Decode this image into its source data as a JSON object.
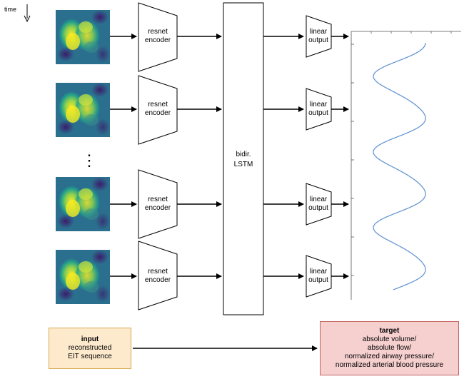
{
  "time_label": "time",
  "encoder_label_line1": "resnet",
  "encoder_label_line2": "encoder",
  "lstm_label_line1": "bidir.",
  "lstm_label_line2": "LSTM",
  "output_label_line1": "linear",
  "output_label_line2": "output",
  "ellipsis": "⋮",
  "input_box": {
    "title": "input",
    "line1": "reconstructed",
    "line2": "EIT sequence"
  },
  "target_box": {
    "title": "target",
    "line1": "absolute volume/",
    "line2": "absolute flow/",
    "line3": "normalized airway pressure/",
    "line4": "normalized arterial blood pressure"
  },
  "colors": {
    "input_fill": "#fde9cc",
    "input_stroke": "#d9a84e",
    "target_fill": "#f6cfcf",
    "target_stroke": "#c46262",
    "signal_stroke": "#5b8fcf",
    "heatmap_bg": "#2f6b8e",
    "heatmap_hot": "#f5e61f"
  },
  "icons": [
    "down-arrow-icon",
    "eit-frame-image",
    "signal-waveform"
  ]
}
